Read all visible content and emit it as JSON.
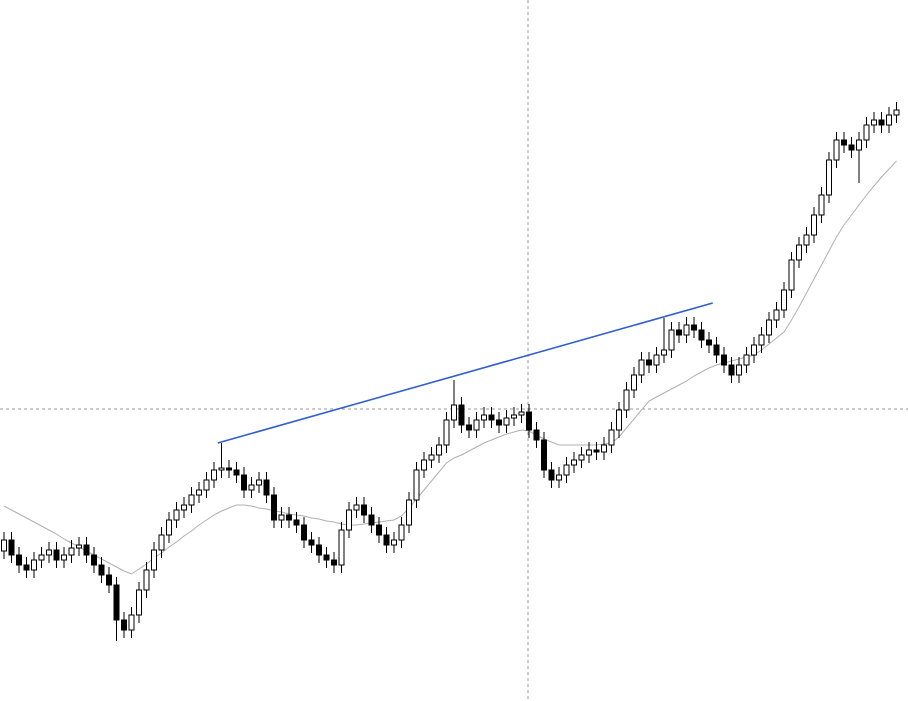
{
  "chart_data": {
    "type": "candlestick",
    "ylim": [
      0,
      701
    ],
    "up_color": "#ffffff",
    "down_color": "#000000",
    "outline_color": "#000000",
    "open": [
      150,
      161,
      146,
      136,
      131,
      141,
      146,
      151,
      141,
      146,
      153,
      156,
      146,
      136,
      126,
      116,
      81,
      71,
      86,
      111,
      131,
      151,
      166,
      181,
      191,
      196,
      206,
      211,
      221,
      231,
      233,
      231,
      226,
      211,
      216,
      221,
      206,
      181,
      186,
      181,
      176,
      161,
      156,
      146,
      141,
      136,
      171,
      191,
      196,
      186,
      176,
      166,
      156,
      161,
      176,
      201,
      231,
      241,
      246,
      256,
      281,
      296,
      276,
      271,
      281,
      286,
      281,
      276,
      283,
      286,
      289,
      271,
      261,
      231,
      221,
      226,
      236,
      241,
      246,
      251,
      249,
      256,
      271,
      291,
      311,
      326,
      341,
      336,
      346,
      351,
      371,
      366,
      376,
      371,
      361,
      356,
      346,
      336,
      326,
      336,
      346,
      356,
      366,
      381,
      391,
      411,
      441,
      456,
      466,
      486,
      506,
      541,
      561,
      556,
      551,
      561,
      576,
      581,
      576,
      586
    ],
    "high": [
      169,
      169,
      154,
      144,
      149,
      154,
      159,
      159,
      154,
      161,
      164,
      164,
      154,
      144,
      134,
      124,
      89,
      94,
      119,
      139,
      159,
      174,
      189,
      199,
      204,
      214,
      219,
      229,
      239,
      258,
      241,
      239,
      234,
      224,
      229,
      229,
      214,
      194,
      194,
      189,
      184,
      169,
      164,
      154,
      149,
      179,
      199,
      204,
      204,
      194,
      184,
      174,
      169,
      184,
      209,
      239,
      249,
      254,
      264,
      289,
      321,
      304,
      284,
      289,
      294,
      294,
      289,
      291,
      294,
      297,
      297,
      279,
      269,
      239,
      234,
      244,
      249,
      254,
      259,
      259,
      264,
      279,
      299,
      319,
      334,
      349,
      349,
      354,
      383,
      379,
      379,
      384,
      384,
      379,
      369,
      364,
      354,
      344,
      344,
      354,
      364,
      374,
      389,
      399,
      419,
      449,
      464,
      474,
      494,
      514,
      549,
      569,
      569,
      564,
      569,
      584,
      589,
      589,
      594,
      599
    ],
    "low": [
      142,
      138,
      128,
      123,
      123,
      133,
      138,
      133,
      133,
      138,
      145,
      138,
      128,
      118,
      108,
      60,
      63,
      63,
      78,
      103,
      123,
      143,
      158,
      173,
      183,
      188,
      198,
      203,
      213,
      223,
      223,
      218,
      203,
      203,
      208,
      198,
      173,
      173,
      173,
      168,
      153,
      148,
      138,
      133,
      128,
      128,
      163,
      183,
      178,
      168,
      158,
      148,
      148,
      153,
      168,
      193,
      223,
      233,
      238,
      248,
      273,
      268,
      263,
      263,
      273,
      273,
      268,
      268,
      275,
      278,
      263,
      253,
      223,
      213,
      213,
      218,
      228,
      233,
      238,
      241,
      241,
      248,
      263,
      283,
      303,
      318,
      328,
      328,
      338,
      343,
      358,
      358,
      363,
      353,
      348,
      338,
      328,
      318,
      318,
      328,
      338,
      348,
      358,
      373,
      383,
      403,
      433,
      448,
      458,
      478,
      498,
      533,
      548,
      543,
      518,
      553,
      568,
      568,
      568,
      578
    ],
    "close": [
      161,
      146,
      136,
      131,
      141,
      146,
      151,
      141,
      146,
      153,
      156,
      146,
      136,
      126,
      116,
      81,
      71,
      86,
      111,
      131,
      151,
      166,
      181,
      191,
      196,
      206,
      211,
      221,
      231,
      233,
      231,
      226,
      211,
      216,
      221,
      206,
      181,
      186,
      181,
      176,
      161,
      156,
      146,
      141,
      136,
      171,
      191,
      196,
      186,
      176,
      166,
      156,
      161,
      176,
      201,
      231,
      241,
      246,
      256,
      281,
      296,
      276,
      271,
      281,
      286,
      281,
      276,
      283,
      286,
      289,
      271,
      261,
      231,
      221,
      226,
      236,
      241,
      246,
      251,
      249,
      256,
      271,
      291,
      311,
      326,
      341,
      336,
      346,
      351,
      371,
      366,
      376,
      371,
      361,
      356,
      346,
      336,
      326,
      336,
      346,
      356,
      366,
      381,
      391,
      411,
      441,
      456,
      466,
      486,
      506,
      541,
      561,
      556,
      551,
      561,
      576,
      581,
      576,
      586,
      591
    ],
    "moving_average": {
      "color": "#b0b0b0",
      "values": [
        195,
        191,
        187,
        183,
        179,
        175,
        171,
        167,
        162,
        158,
        154,
        150,
        146,
        142,
        138,
        134,
        130,
        127,
        132,
        137,
        143,
        148,
        154,
        159,
        165,
        170,
        176,
        181,
        186,
        190,
        193,
        196,
        196,
        195,
        193,
        192,
        190,
        189,
        187,
        186,
        185,
        183,
        182,
        180,
        179,
        177,
        176,
        176,
        177,
        178,
        179,
        180,
        181,
        185,
        193,
        202,
        211,
        220,
        229,
        238,
        243,
        246,
        250,
        254,
        258,
        261,
        264,
        267,
        269,
        271,
        270,
        266,
        262,
        259,
        256,
        256,
        256,
        256,
        256,
        256,
        257,
        258,
        264,
        273,
        282,
        291,
        300,
        304,
        308,
        312,
        316,
        320,
        325,
        329,
        333,
        336,
        338,
        340,
        342,
        344,
        346,
        351,
        357,
        363,
        369,
        381,
        394,
        408,
        422,
        436,
        450,
        464,
        476,
        486,
        496,
        506,
        515,
        524,
        532,
        540
      ]
    },
    "trendline": {
      "color": "#2f5fd0",
      "x": [
        28.5,
        94.5
      ],
      "values": [
        258,
        398
      ]
    }
  }
}
